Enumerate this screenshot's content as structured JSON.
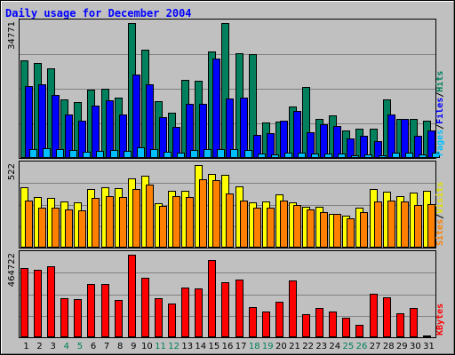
{
  "chart_data": {
    "type": "bar",
    "title": "Daily usage for December 2004",
    "title_color": "#0000ff",
    "background": "#c0c0c0",
    "categories": [
      "1",
      "2",
      "3",
      "4",
      "5",
      "6",
      "7",
      "8",
      "9",
      "10",
      "11",
      "12",
      "13",
      "14",
      "15",
      "16",
      "17",
      "18",
      "19",
      "20",
      "21",
      "22",
      "23",
      "24",
      "25",
      "26",
      "27",
      "28",
      "29",
      "30",
      "31"
    ],
    "weekend_days": [
      "4",
      "5",
      "11",
      "12",
      "18",
      "19",
      "25",
      "26"
    ],
    "weekday_color": "#000000",
    "weekend_color": "#00805c",
    "panels": [
      {
        "max_label": "34771",
        "max": 34771,
        "separator": "/",
        "series": [
          {
            "name": "Hits",
            "color": "#00805c",
            "values": [
              25200,
              24500,
              23000,
              15000,
              14300,
              17600,
              17900,
              15500,
              34771,
              27800,
              14700,
              11700,
              20200,
              20000,
              27500,
              34771,
              26900,
              26700,
              9100,
              9400,
              13300,
              18400,
              10000,
              10900,
              7000,
              7600,
              7600,
              15100,
              10000,
              10100,
              9600
            ]
          },
          {
            "name": "Files",
            "color": "#0000ff",
            "values": [
              18500,
              18900,
              16200,
              11300,
              9700,
              13500,
              14900,
              11300,
              21500,
              19000,
              10500,
              8000,
              13900,
              13900,
              25700,
              15400,
              15500,
              5900,
              6500,
              9600,
              12200,
              6700,
              8600,
              8300,
              5100,
              5700,
              4300,
              11100,
              10100,
              5800,
              7000
            ]
          },
          {
            "name": "Pages",
            "color": "#00bfff",
            "values": [
              2400,
              2600,
              2200,
              2000,
              1600,
              1900,
              2000,
              1800,
              2700,
              2300,
              1700,
              1400,
              2100,
              2200,
              2400,
              2300,
              2000,
              1200,
              1000,
              1300,
              1300,
              1100,
              1200,
              1100,
              800,
              900,
              800,
              1400,
              1300,
              1000,
              1300
            ]
          }
        ]
      },
      {
        "max_label": "522",
        "max": 522,
        "separator": "/",
        "series": [
          {
            "name": "Visits",
            "color": "#ffff00",
            "values": [
              384,
              318,
              312,
              293,
              285,
              372,
              381,
              378,
              436,
              453,
              283,
              357,
              361,
              522,
              466,
              459,
              388,
              286,
              290,
              337,
              285,
              259,
              257,
              213,
              200,
              251,
              369,
              354,
              328,
              346,
              362
            ]
          },
          {
            "name": "Sites",
            "color": "#ff8000",
            "values": [
              300,
              250,
              252,
              241,
              233,
              317,
              328,
              319,
              372,
              400,
              263,
              326,
              322,
              432,
              425,
              345,
              298,
              251,
              252,
              298,
              272,
              242,
              223,
              212,
              186,
              227,
              292,
              299,
              290,
              267,
              274
            ]
          }
        ]
      },
      {
        "max_label": "464722",
        "max": 464722,
        "separator": "/",
        "series": [
          {
            "name": "KBytes",
            "color": "#ff0000",
            "values": [
              390000,
              380000,
              400000,
              220000,
              216000,
              300000,
              300000,
              210000,
              464722,
              336000,
              220000,
              190000,
              280000,
              273000,
              433000,
              310000,
              324000,
              170000,
              147000,
              200000,
              320000,
              130000,
              165000,
              145000,
              110000,
              70000,
              247000,
              223000,
              134000,
              165000,
              10000
            ]
          }
        ]
      }
    ]
  }
}
